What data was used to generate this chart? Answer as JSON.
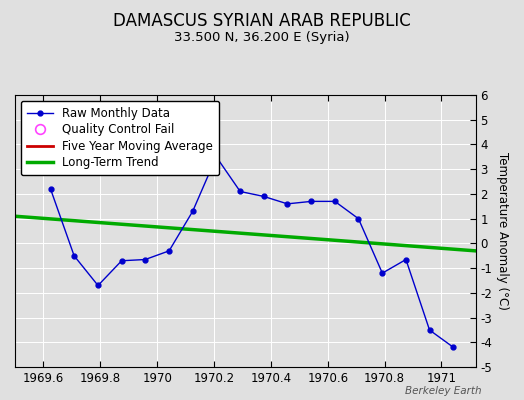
{
  "title": "DAMASCUS SYRIAN ARAB REPUBLIC",
  "subtitle": "33.500 N, 36.200 E (Syria)",
  "ylabel": "Temperature Anomaly (°C)",
  "watermark": "Berkeley Earth",
  "background_color": "#e0e0e0",
  "plot_bg_color": "#e0e0e0",
  "xlim": [
    1969.5,
    1971.12
  ],
  "ylim": [
    -5,
    6
  ],
  "yticks": [
    -5,
    -4,
    -3,
    -2,
    -1,
    0,
    1,
    2,
    3,
    4,
    5,
    6
  ],
  "xticks": [
    1969.6,
    1969.8,
    1970.0,
    1970.2,
    1970.4,
    1970.6,
    1970.8,
    1971.0
  ],
  "raw_x": [
    1969.625,
    1969.708,
    1969.792,
    1969.875,
    1969.958,
    1970.042,
    1970.125,
    1970.208,
    1970.292,
    1970.375,
    1970.458,
    1970.542,
    1970.625,
    1970.708,
    1970.792,
    1970.875,
    1970.958,
    1971.042
  ],
  "raw_y": [
    2.2,
    -0.5,
    -1.7,
    -0.7,
    -0.65,
    -0.3,
    1.3,
    3.5,
    2.1,
    1.9,
    1.6,
    1.7,
    1.7,
    1.0,
    -1.2,
    -0.65,
    -3.5,
    -4.2
  ],
  "trend_x": [
    1969.5,
    1971.12
  ],
  "trend_y": [
    1.1,
    -0.3
  ],
  "raw_color": "#0000cc",
  "trend_color": "#00aa00",
  "ma_color": "#cc0000",
  "qc_color": "#ff44ff",
  "legend_items": [
    "Raw Monthly Data",
    "Quality Control Fail",
    "Five Year Moving Average",
    "Long-Term Trend"
  ],
  "title_fontsize": 12,
  "subtitle_fontsize": 9.5,
  "ylabel_fontsize": 8.5,
  "tick_fontsize": 8.5,
  "legend_fontsize": 8.5
}
